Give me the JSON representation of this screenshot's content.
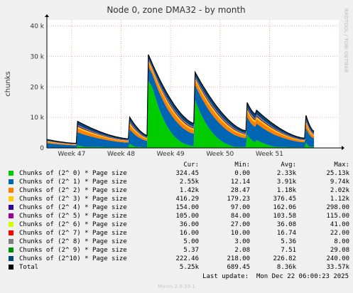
{
  "title": "Node 0, zone DMA32 - by month",
  "ylabel": "chunks",
  "side_label": "RRDTOOL / TOBI OETIKER",
  "chart_data": {
    "type": "area",
    "stacked": true,
    "title": "Node 0, zone DMA32 - by month",
    "ylabel": "chunks",
    "ylim": [
      0,
      42000
    ],
    "yticks": [
      0,
      10000,
      20000,
      30000,
      40000
    ],
    "ytick_labels": [
      "0",
      "10 k",
      "20 k",
      "30 k",
      "40 k"
    ],
    "xtick_labels": [
      "Week 47",
      "Week 48",
      "Week 49",
      "Week 50",
      "Week 51"
    ],
    "x_segments": [
      {
        "start": 0,
        "end": 0.104,
        "from": 2800,
        "to": 1500
      },
      {
        "start": 0.104,
        "end": 0.283,
        "from": 8800,
        "to": 3000
      },
      {
        "start": 0.283,
        "end": 0.347,
        "from": 10200,
        "to": 4000
      },
      {
        "start": 0.347,
        "end": 0.507,
        "from": 30800,
        "to": 8000
      },
      {
        "start": 0.507,
        "end": 0.684,
        "from": 25000,
        "to": 5600
      },
      {
        "start": 0.684,
        "end": 0.716,
        "from": 15400,
        "to": 11000
      },
      {
        "start": 0.716,
        "end": 0.884,
        "from": 12600,
        "to": 3200
      },
      {
        "start": 0.884,
        "end": 0.915,
        "from": 11800,
        "to": 5500
      }
    ],
    "grid": true,
    "legend_position": "bottom",
    "series": [
      {
        "name": "Chunks of (2^ 0) * Page size",
        "color": "#00cc00",
        "cur": "324.45",
        "min": "0.00",
        "avg": "2.33k",
        "max": "25.13k"
      },
      {
        "name": "Chunks of (2^ 1) * Page size",
        "color": "#0066b3",
        "cur": "2.55k",
        "min": "12.14",
        "avg": "3.91k",
        "max": "9.74k"
      },
      {
        "name": "Chunks of (2^ 2) * Page size",
        "color": "#ff8000",
        "cur": "1.42k",
        "min": "28.47",
        "avg": "1.18k",
        "max": "2.02k"
      },
      {
        "name": "Chunks of (2^ 3) * Page size",
        "color": "#ffcc00",
        "cur": "416.29",
        "min": "179.23",
        "avg": "376.45",
        "max": "1.12k"
      },
      {
        "name": "Chunks of (2^ 4) * Page size",
        "color": "#330099",
        "cur": "154.00",
        "min": "97.00",
        "avg": "162.06",
        "max": "298.00"
      },
      {
        "name": "Chunks of (2^ 5) * Page size",
        "color": "#990099",
        "cur": "105.00",
        "min": "84.00",
        "avg": "103.58",
        "max": "115.00"
      },
      {
        "name": "Chunks of (2^ 6) * Page size",
        "color": "#ccff00",
        "cur": "36.00",
        "min": "27.00",
        "avg": "36.08",
        "max": "41.00"
      },
      {
        "name": "Chunks of (2^ 7) * Page size",
        "color": "#ff0000",
        "cur": "16.00",
        "min": "10.00",
        "avg": "16.74",
        "max": "22.00"
      },
      {
        "name": "Chunks of (2^ 8) * Page size",
        "color": "#808080",
        "cur": "5.00",
        "min": "3.00",
        "avg": "5.36",
        "max": "8.00"
      },
      {
        "name": "Chunks of (2^ 9) * Page size",
        "color": "#008f00",
        "cur": "5.37",
        "min": "2.08",
        "avg": "7.51",
        "max": "29.08"
      },
      {
        "name": "Chunks of (2^10) * Page size",
        "color": "#00487d",
        "cur": "222.46",
        "min": "218.00",
        "avg": "226.82",
        "max": "240.00"
      },
      {
        "name": "Total",
        "color": "#000000",
        "cur": "5.25k",
        "min": "689.45",
        "avg": "8.36k",
        "max": "33.57k"
      }
    ]
  },
  "legend_headers": {
    "cur": "Cur:",
    "min": "Min:",
    "avg": "Avg:",
    "max": "Max:"
  },
  "last_update": "Last update:  Mon Dec 22 06:00:23 2025",
  "footer": "Munin 2.0.33-1"
}
